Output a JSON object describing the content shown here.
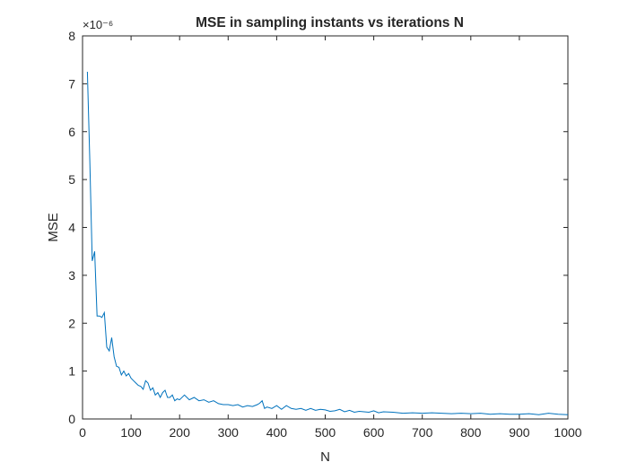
{
  "chart_data": {
    "type": "line",
    "title": "MSE in sampling instants vs iterations N",
    "xlabel": "N",
    "ylabel": "MSE",
    "xlim": [
      0,
      1000
    ],
    "ylim": [
      0,
      8
    ],
    "y_exponent_label": "×10⁻⁶",
    "xticks": [
      0,
      100,
      200,
      300,
      400,
      500,
      600,
      700,
      800,
      900,
      1000
    ],
    "yticks": [
      0,
      1,
      2,
      3,
      4,
      5,
      6,
      7,
      8
    ],
    "grid": false,
    "line_color": "#0072BD",
    "series": [
      {
        "x": [
          10,
          15,
          20,
          25,
          30,
          35,
          40,
          45,
          50,
          55,
          60,
          65,
          70,
          75,
          80,
          85,
          90,
          95,
          100,
          105,
          110,
          115,
          120,
          125,
          130,
          135,
          140,
          145,
          150,
          155,
          160,
          165,
          170,
          175,
          180,
          185,
          190,
          195,
          200,
          210,
          220,
          230,
          240,
          250,
          260,
          270,
          280,
          290,
          300,
          310,
          320,
          330,
          340,
          350,
          360,
          365,
          370,
          375,
          380,
          390,
          400,
          410,
          420,
          430,
          440,
          450,
          460,
          470,
          480,
          490,
          500,
          510,
          520,
          530,
          540,
          550,
          560,
          570,
          580,
          590,
          600,
          610,
          620,
          640,
          660,
          680,
          700,
          720,
          740,
          760,
          780,
          800,
          820,
          840,
          860,
          880,
          900,
          920,
          940,
          960,
          980,
          1000
        ],
        "y": [
          7.25,
          5.4,
          3.3,
          3.5,
          2.15,
          2.15,
          2.12,
          2.22,
          1.5,
          1.42,
          1.7,
          1.3,
          1.1,
          1.08,
          0.92,
          1.0,
          0.9,
          0.95,
          0.85,
          0.8,
          0.75,
          0.7,
          0.68,
          0.62,
          0.8,
          0.75,
          0.6,
          0.65,
          0.5,
          0.55,
          0.45,
          0.55,
          0.6,
          0.45,
          0.45,
          0.5,
          0.38,
          0.42,
          0.4,
          0.5,
          0.4,
          0.45,
          0.38,
          0.4,
          0.35,
          0.38,
          0.32,
          0.3,
          0.3,
          0.28,
          0.3,
          0.25,
          0.28,
          0.26,
          0.3,
          0.33,
          0.38,
          0.22,
          0.25,
          0.22,
          0.28,
          0.2,
          0.28,
          0.22,
          0.2,
          0.22,
          0.18,
          0.22,
          0.18,
          0.2,
          0.19,
          0.16,
          0.17,
          0.2,
          0.15,
          0.18,
          0.14,
          0.16,
          0.15,
          0.14,
          0.17,
          0.13,
          0.15,
          0.14,
          0.12,
          0.13,
          0.12,
          0.13,
          0.12,
          0.11,
          0.12,
          0.11,
          0.12,
          0.1,
          0.11,
          0.1,
          0.1,
          0.11,
          0.09,
          0.12,
          0.1,
          0.09
        ]
      }
    ]
  }
}
